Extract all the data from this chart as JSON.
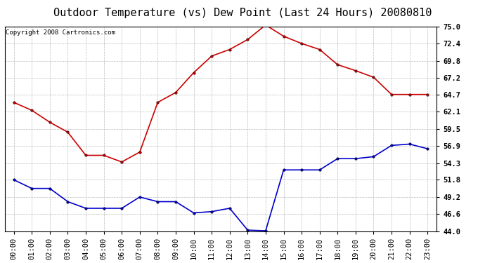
{
  "title": "Outdoor Temperature (vs) Dew Point (Last 24 Hours) 20080810",
  "copyright": "Copyright 2008 Cartronics.com",
  "hours": [
    "00:00",
    "01:00",
    "02:00",
    "03:00",
    "04:00",
    "05:00",
    "06:00",
    "07:00",
    "08:00",
    "09:00",
    "10:00",
    "11:00",
    "12:00",
    "13:00",
    "14:00",
    "15:00",
    "16:00",
    "17:00",
    "18:00",
    "19:00",
    "20:00",
    "21:00",
    "22:00",
    "23:00"
  ],
  "temp": [
    63.5,
    62.3,
    60.5,
    59.0,
    55.5,
    55.5,
    54.5,
    56.0,
    63.5,
    65.0,
    68.0,
    70.5,
    71.5,
    73.0,
    75.2,
    73.5,
    72.4,
    71.5,
    69.2,
    68.3,
    67.3,
    64.7,
    64.7,
    64.7
  ],
  "dew": [
    51.8,
    50.5,
    50.5,
    48.5,
    47.5,
    47.5,
    47.5,
    49.2,
    48.5,
    48.5,
    46.8,
    47.0,
    47.5,
    44.2,
    44.1,
    53.3,
    53.3,
    53.3,
    55.0,
    55.0,
    55.3,
    57.0,
    57.2,
    56.5
  ],
  "temp_color": "#cc0000",
  "dew_color": "#0000cc",
  "bg_color": "#ffffff",
  "plot_bg_color": "#ffffff",
  "grid_color": "#bbbbbb",
  "yticks": [
    44.0,
    46.6,
    49.2,
    51.8,
    54.3,
    56.9,
    59.5,
    62.1,
    64.7,
    67.2,
    69.8,
    72.4,
    75.0
  ],
  "ylim": [
    44.0,
    75.0
  ],
  "title_fontsize": 11,
  "copyright_fontsize": 6.5,
  "tick_fontsize": 7.5,
  "marker": "o",
  "markersize": 2.5,
  "linewidth": 1.2
}
